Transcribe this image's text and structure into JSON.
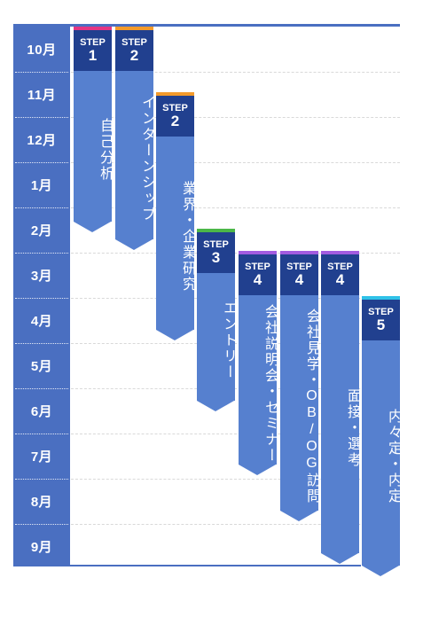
{
  "months": [
    "10月",
    "11月",
    "12月",
    "1月",
    "2月",
    "3月",
    "4月",
    "5月",
    "6月",
    "7月",
    "8月",
    "9月"
  ],
  "step_word": "STEP",
  "colors": {
    "month_bg": "#4a6fc1",
    "header_bg": "#21408f",
    "body_bg": "#5680cf",
    "accent_pink": "#e33583",
    "accent_orange": "#f39a2b",
    "accent_green": "#4cb748",
    "accent_purple": "#a25be0",
    "accent_cyan": "#2fc2e8"
  },
  "steps": [
    {
      "num": "1",
      "label": "自己分析",
      "accent": "accent_pink"
    },
    {
      "num": "2",
      "label": "インターンシップ",
      "accent": "accent_orange"
    },
    {
      "num": "2",
      "label": "業界・企業研究",
      "accent": "accent_orange"
    },
    {
      "num": "3",
      "label": "エントリー",
      "accent": "accent_green"
    },
    {
      "num": "4",
      "label": "会社説明会・セミナー",
      "accent": "accent_purple"
    },
    {
      "num": "4",
      "label": "会社見学・OB/OG訪問",
      "accent": "accent_purple"
    },
    {
      "num": "4",
      "label": "面接・選考",
      "accent": "accent_purple"
    },
    {
      "num": "5",
      "label": "内々定・内定",
      "accent": "accent_cyan"
    }
  ]
}
